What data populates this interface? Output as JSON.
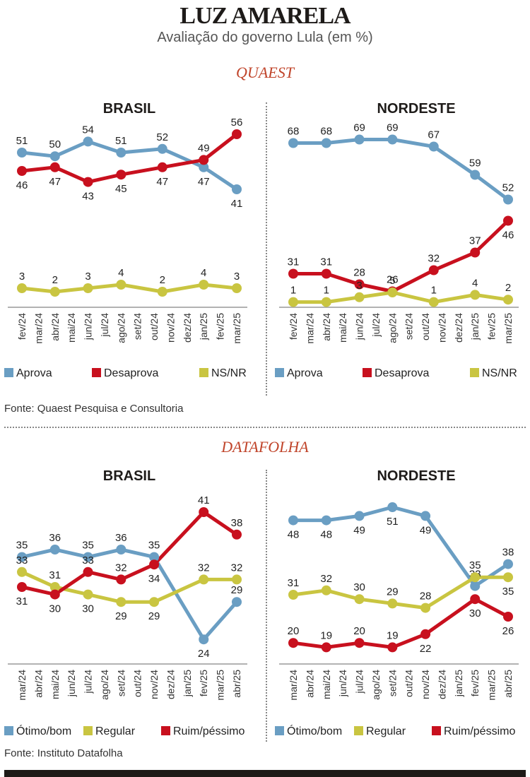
{
  "header": {
    "title": "LUZ AMARELA",
    "subtitle": "Avaliação do governo Lula (em %)"
  },
  "sections": {
    "quaest": {
      "label": "QUAEST",
      "source": "Fonte: Quaest Pesquisa e Consultoria"
    },
    "datafolha": {
      "label": "DATAFOLHA",
      "source": "Fonte: Instituto Datafolha"
    }
  },
  "colors": {
    "blue": "#6a9ec3",
    "red": "#c8101e",
    "yellow": "#c9c541",
    "axis": "#999999"
  },
  "chart_data": [
    {
      "type": "line",
      "id": "quaest-brasil",
      "title": "BRASIL",
      "ticks": [
        "fev/24",
        "mar/24",
        "abr/24",
        "mai/24",
        "jun/24",
        "jul/24",
        "ago/24",
        "set/24",
        "out/24",
        "nov/24",
        "dez/24",
        "jan/25",
        "fev/25",
        "mar/25"
      ],
      "x": [
        0,
        2,
        4,
        6,
        8.5,
        11,
        13
      ],
      "ylim": [
        0,
        60
      ],
      "series": [
        {
          "name": "Aprova",
          "color": "#6a9ec3",
          "values": [
            51,
            50,
            54,
            51,
            52,
            47,
            41
          ],
          "label_pos": [
            "above",
            "above",
            "above",
            "above",
            "above",
            "below",
            "below"
          ]
        },
        {
          "name": "Desaprova",
          "color": "#c8101e",
          "values": [
            46,
            47,
            43,
            45,
            47,
            49,
            56
          ],
          "label_pos": [
            "below",
            "below",
            "below",
            "below",
            "below",
            "above",
            "above"
          ]
        },
        {
          "name": "NS/NR",
          "color": "#c9c541",
          "values": [
            3,
            2,
            3,
            4,
            2,
            4,
            3
          ],
          "label_pos": [
            "above",
            "above",
            "above",
            "above",
            "above",
            "above",
            "above"
          ]
        }
      ]
    },
    {
      "type": "line",
      "id": "quaest-nordeste",
      "title": "NORDESTE",
      "ticks": [
        "fev/24",
        "mar/24",
        "abr/24",
        "mai/24",
        "jun/24",
        "jul/24",
        "ago/24",
        "set/24",
        "out/24",
        "nov/24",
        "dez/24",
        "jan/25",
        "fev/25",
        "mar/25"
      ],
      "x": [
        0,
        2,
        4,
        6,
        8.5,
        11,
        13
      ],
      "ylim": [
        0,
        75
      ],
      "series": [
        {
          "name": "Aprova",
          "color": "#6a9ec3",
          "values": [
            68,
            68,
            69,
            69,
            67,
            59,
            52
          ],
          "label_pos": [
            "above",
            "above",
            "above",
            "above",
            "above",
            "above",
            "above"
          ]
        },
        {
          "name": "Desaprova",
          "color": "#c8101e",
          "values": [
            31,
            31,
            28,
            26,
            32,
            37,
            46
          ],
          "label_pos": [
            "above",
            "above",
            "above",
            "above",
            "above",
            "above",
            "below"
          ]
        },
        {
          "name": "NS/NR",
          "color": "#c9c541",
          "values": [
            1,
            1,
            3,
            5,
            1,
            4,
            2
          ],
          "label_pos": [
            "above",
            "above",
            "above",
            "above",
            "above",
            "above",
            "above"
          ]
        }
      ]
    },
    {
      "type": "line",
      "id": "datafolha-brasil",
      "title": "BRASIL",
      "ticks": [
        "mar/24",
        "abr/24",
        "mai/24",
        "jun/24",
        "jul/24",
        "ago/24",
        "set/24",
        "out/24",
        "nov/24",
        "dez/24",
        "jan/25",
        "fev/25",
        "mar/25",
        "abr/25"
      ],
      "x": [
        0,
        2,
        4,
        6,
        8,
        11,
        13
      ],
      "ylim": [
        20,
        45
      ],
      "series": [
        {
          "name": "Ótimo/bom",
          "color": "#6a9ec3",
          "values": [
            35,
            36,
            35,
            36,
            35,
            24,
            29
          ],
          "label_pos": [
            "above",
            "above",
            "above",
            "above",
            "above",
            "below",
            "above"
          ]
        },
        {
          "name": "Regular",
          "color": "#c9c541",
          "values": [
            33,
            31,
            30,
            29,
            29,
            32,
            32
          ],
          "label_pos": [
            "above",
            "above",
            "below",
            "below",
            "below",
            "above",
            "above"
          ]
        },
        {
          "name": "Ruim/péssimo",
          "color": "#c8101e",
          "values": [
            31,
            30,
            33,
            32,
            34,
            41,
            38
          ],
          "label_pos": [
            "below",
            "below",
            "above",
            "above",
            "below",
            "above",
            "above"
          ]
        }
      ]
    },
    {
      "type": "line",
      "id": "datafolha-nordeste",
      "title": "NORDESTE",
      "ticks": [
        "mar/24",
        "abr/24",
        "mai/24",
        "jun/24",
        "jul/24",
        "ago/24",
        "set/24",
        "out/24",
        "nov/24",
        "dez/24",
        "jan/25",
        "fev/25",
        "mar/25",
        "abr/25"
      ],
      "x": [
        0,
        2,
        4,
        6,
        8,
        11,
        13
      ],
      "ylim": [
        15,
        55
      ],
      "series": [
        {
          "name": "Ótimo/bom",
          "color": "#6a9ec3",
          "values": [
            48,
            48,
            49,
            51,
            49,
            33,
            38
          ],
          "label_pos": [
            "below",
            "below",
            "below",
            "below",
            "below",
            "above",
            "above"
          ]
        },
        {
          "name": "Regular",
          "color": "#c9c541",
          "values": [
            31,
            32,
            30,
            29,
            28,
            35,
            35
          ],
          "label_pos": [
            "above",
            "above",
            "above",
            "above",
            "above",
            "above",
            "below"
          ]
        },
        {
          "name": "Ruim/péssimo",
          "color": "#c8101e",
          "values": [
            20,
            19,
            20,
            19,
            22,
            30,
            26
          ],
          "label_pos": [
            "above",
            "above",
            "above",
            "above",
            "below",
            "below",
            "below"
          ]
        }
      ]
    }
  ]
}
